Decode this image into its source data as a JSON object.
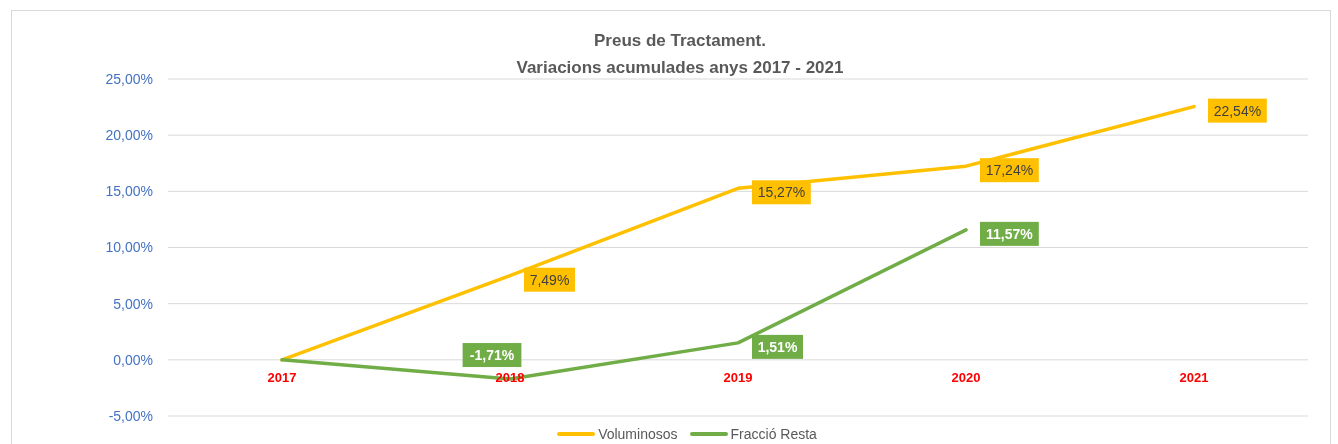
{
  "chart_data": {
    "type": "line",
    "title": "Preus de Tractament.",
    "subtitle": "Variacions acumulades anys 2017 - 2021",
    "categories": [
      "2017",
      "2018",
      "2019",
      "2020",
      "2021"
    ],
    "series": [
      {
        "name": "Voluminosos",
        "color": "#ffc000",
        "values": [
          0,
          7.49,
          15.27,
          17.24,
          22.54
        ],
        "value_labels": [
          null,
          "7,49%",
          "15,27%",
          "17,24%",
          "22,54%"
        ]
      },
      {
        "name": "Fracció Resta",
        "color": "#70ad47",
        "values": [
          0,
          -1.71,
          1.51,
          11.57,
          null
        ],
        "value_labels": [
          null,
          "-1,71%",
          "1,51%",
          "11,57%",
          null
        ]
      }
    ],
    "ylim": [
      -5,
      25
    ],
    "yticks": [
      {
        "value": -5,
        "label": "-5,00%"
      },
      {
        "value": 0,
        "label": "0,00%"
      },
      {
        "value": 5,
        "label": "5,00%"
      },
      {
        "value": 10,
        "label": "10,00%"
      },
      {
        "value": 15,
        "label": "15,00%"
      },
      {
        "value": 20,
        "label": "20,00%"
      },
      {
        "value": 25,
        "label": "25,00%"
      }
    ],
    "grid": "y",
    "legend": "bottom"
  }
}
